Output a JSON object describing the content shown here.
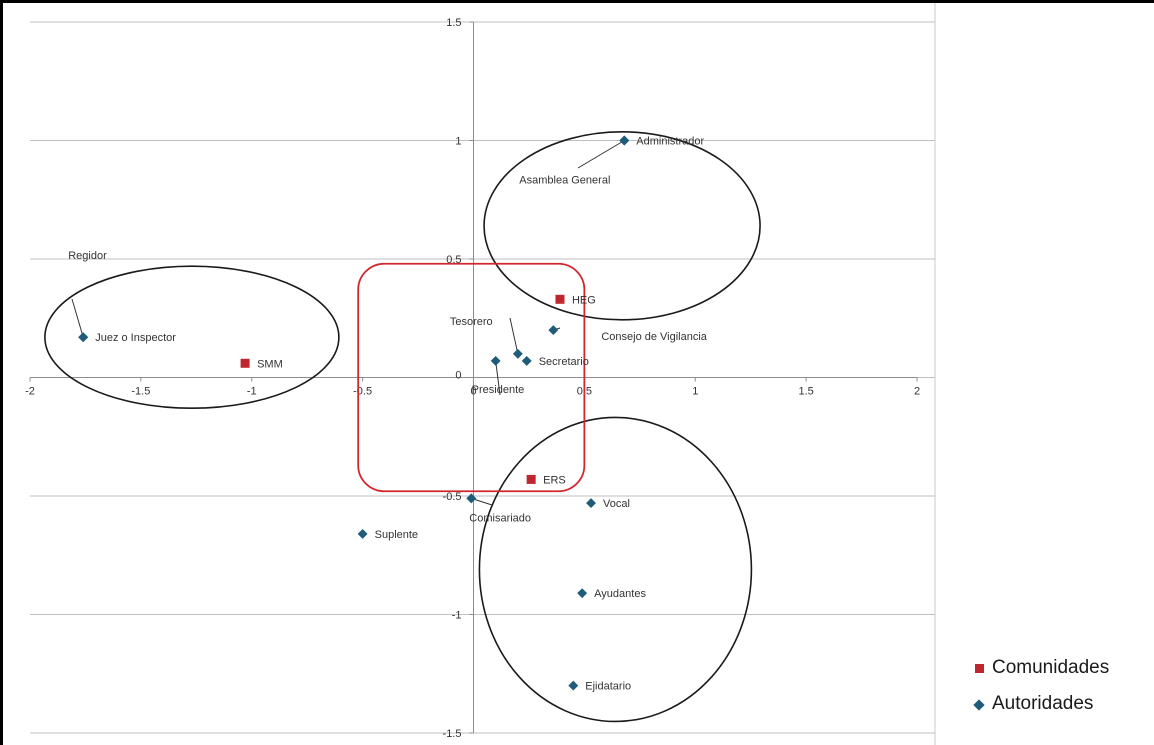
{
  "chart_data": {
    "type": "scatter",
    "title": "",
    "xlabel": "",
    "ylabel": "",
    "xlim": [
      -2,
      2
    ],
    "ylim": [
      -1.5,
      1.5
    ],
    "x_ticks": [
      -2,
      -1.5,
      -1,
      -0.5,
      0,
      0.5,
      1,
      1.5,
      2
    ],
    "y_ticks": [
      -1.5,
      -1,
      -0.5,
      0,
      0.5,
      1,
      1.5
    ],
    "x_tick_labels": [
      "-2",
      "-1.5",
      "-1",
      "-0.5",
      "0",
      "0.5",
      "1",
      "1.5",
      "2"
    ],
    "y_tick_labels": [
      "-1.5",
      "-1",
      "-0.5",
      "0",
      "0.5",
      "1",
      "1.5"
    ],
    "grid": "horizontal",
    "legend_position": "bottom-right",
    "series": [
      {
        "name": "Comunidades",
        "marker": "square",
        "color": "#c0262d",
        "points": [
          {
            "label": "HEG",
            "x": 0.39,
            "y": 0.33
          },
          {
            "label": "SMM",
            "x": -1.03,
            "y": 0.06
          },
          {
            "label": "ERS",
            "x": 0.26,
            "y": -0.43
          }
        ]
      },
      {
        "name": "Autoridades",
        "marker": "diamond",
        "color": "#1f5c7a",
        "points": [
          {
            "label": "Administrador",
            "x": 0.68,
            "y": 1.0
          },
          {
            "label": "Asamblea General",
            "x": 0.68,
            "y": 1.0
          },
          {
            "label": "Regidor",
            "x": -1.76,
            "y": 0.17
          },
          {
            "label": "Juez o Inspector",
            "x": -1.76,
            "y": 0.17
          },
          {
            "label": "Consejo de Vigilancia",
            "x": 0.36,
            "y": 0.2
          },
          {
            "label": "Tesorero",
            "x": 0.2,
            "y": 0.1
          },
          {
            "label": "Secretario",
            "x": 0.24,
            "y": 0.07
          },
          {
            "label": "Presidente",
            "x": 0.1,
            "y": 0.07
          },
          {
            "label": "Comisariado",
            "x": -0.01,
            "y": -0.51
          },
          {
            "label": "Vocal",
            "x": 0.53,
            "y": -0.53
          },
          {
            "label": "Suplente",
            "x": -0.5,
            "y": -0.66
          },
          {
            "label": "Ayudantes",
            "x": 0.49,
            "y": -0.91
          },
          {
            "label": "Ejidatario",
            "x": 0.45,
            "y": -1.3
          }
        ]
      }
    ]
  }
}
